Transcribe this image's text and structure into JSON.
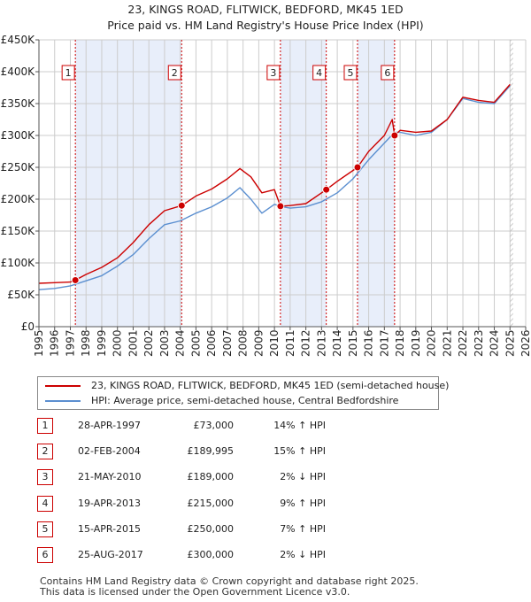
{
  "title_line1": "23, KINGS ROAD, FLITWICK, BEDFORD, MK45 1ED",
  "title_line2": "Price paid vs. HM Land Registry's House Price Index (HPI)",
  "colors": {
    "property": "#cc0000",
    "hpi": "#5b8fd0",
    "shade": "#e8eefa",
    "hatch": "#bbbbbb"
  },
  "chart_data": {
    "type": "line",
    "xlim": [
      1995,
      2026
    ],
    "ylim": [
      0,
      450000
    ],
    "x_ticks": [
      1995,
      1996,
      1997,
      1998,
      1999,
      2000,
      2001,
      2002,
      2003,
      2004,
      2005,
      2006,
      2007,
      2008,
      2009,
      2010,
      2011,
      2012,
      2013,
      2014,
      2015,
      2016,
      2017,
      2018,
      2019,
      2020,
      2021,
      2022,
      2023,
      2024,
      2025,
      2026
    ],
    "y_ticks": [
      {
        "value": 0,
        "label": "£0"
      },
      {
        "value": 50000,
        "label": "£50K"
      },
      {
        "value": 100000,
        "label": "£100K"
      },
      {
        "value": 150000,
        "label": "£150K"
      },
      {
        "value": 200000,
        "label": "£200K"
      },
      {
        "value": 250000,
        "label": "£250K"
      },
      {
        "value": 300000,
        "label": "£300K"
      },
      {
        "value": 350000,
        "label": "£350K"
      },
      {
        "value": 400000,
        "label": "£400K"
      },
      {
        "value": 450000,
        "label": "£450K"
      }
    ],
    "series": [
      {
        "name": "23, KINGS ROAD, FLITWICK, BEDFORD, MK45 1ED (semi-detached house)",
        "color": "#cc0000",
        "points": [
          [
            1995,
            68000
          ],
          [
            1996,
            69000
          ],
          [
            1997.0,
            70000
          ],
          [
            1997.32,
            73000
          ],
          [
            1998,
            82000
          ],
          [
            1999,
            93000
          ],
          [
            2000,
            108000
          ],
          [
            2001,
            132000
          ],
          [
            2002,
            160000
          ],
          [
            2003,
            182000
          ],
          [
            2004.09,
            189995
          ],
          [
            2005,
            205000
          ],
          [
            2006,
            216000
          ],
          [
            2007,
            232000
          ],
          [
            2007.8,
            248000
          ],
          [
            2008.5,
            235000
          ],
          [
            2009.2,
            210000
          ],
          [
            2010,
            215000
          ],
          [
            2010.38,
            189000
          ],
          [
            2011,
            190000
          ],
          [
            2012,
            193000
          ],
          [
            2013.3,
            215000
          ],
          [
            2014,
            228000
          ],
          [
            2015.29,
            250000
          ],
          [
            2016,
            275000
          ],
          [
            2017,
            300000
          ],
          [
            2017.5,
            325000
          ],
          [
            2017.65,
            300000
          ],
          [
            2018,
            308000
          ],
          [
            2019,
            305000
          ],
          [
            2020,
            307000
          ],
          [
            2021,
            325000
          ],
          [
            2022,
            360000
          ],
          [
            2023,
            355000
          ],
          [
            2024,
            352000
          ],
          [
            2025,
            380000
          ]
        ]
      },
      {
        "name": "HPI: Average price, semi-detached house, Central Bedfordshire",
        "color": "#5b8fd0",
        "points": [
          [
            1995,
            58000
          ],
          [
            1996,
            60000
          ],
          [
            1997,
            64000
          ],
          [
            1998,
            72000
          ],
          [
            1999,
            80000
          ],
          [
            2000,
            95000
          ],
          [
            2001,
            113000
          ],
          [
            2002,
            138000
          ],
          [
            2003,
            160000
          ],
          [
            2004,
            166000
          ],
          [
            2005,
            178000
          ],
          [
            2006,
            188000
          ],
          [
            2007,
            202000
          ],
          [
            2007.8,
            218000
          ],
          [
            2008.5,
            200000
          ],
          [
            2009.2,
            178000
          ],
          [
            2010,
            192000
          ],
          [
            2010.5,
            188000
          ],
          [
            2011,
            186000
          ],
          [
            2012,
            188000
          ],
          [
            2013,
            196000
          ],
          [
            2014,
            210000
          ],
          [
            2015,
            232000
          ],
          [
            2016,
            262000
          ],
          [
            2017,
            288000
          ],
          [
            2017.65,
            305000
          ],
          [
            2018,
            305000
          ],
          [
            2019,
            300000
          ],
          [
            2020,
            305000
          ],
          [
            2021,
            325000
          ],
          [
            2022,
            358000
          ],
          [
            2023,
            352000
          ],
          [
            2024,
            350000
          ],
          [
            2025,
            378000
          ]
        ]
      }
    ],
    "ownership_periods": [
      [
        1997.32,
        2004.09
      ],
      [
        2010.38,
        2013.3
      ],
      [
        2015.29,
        2017.65
      ]
    ],
    "transactions": [
      {
        "num": "1",
        "date": "28-APR-1997",
        "price": "£73,000",
        "hpi": "14% ↑ HPI",
        "x": 1997.32,
        "value": 73000
      },
      {
        "num": "2",
        "date": "02-FEB-2004",
        "price": "£189,995",
        "hpi": "15% ↑ HPI",
        "x": 2004.09,
        "value": 189995
      },
      {
        "num": "3",
        "date": "21-MAY-2010",
        "price": "£189,000",
        "hpi": "2% ↓ HPI",
        "x": 2010.38,
        "value": 189000
      },
      {
        "num": "4",
        "date": "19-APR-2013",
        "price": "£215,000",
        "hpi": "9% ↑ HPI",
        "x": 2013.3,
        "value": 215000
      },
      {
        "num": "5",
        "date": "15-APR-2015",
        "price": "£250,000",
        "hpi": "7% ↑ HPI",
        "x": 2015.29,
        "value": 250000
      },
      {
        "num": "6",
        "date": "25-AUG-2017",
        "price": "£300,000",
        "hpi": "2% ↓ HPI",
        "x": 2017.65,
        "value": 300000
      }
    ],
    "projection_from": 2025.0
  },
  "footer": {
    "line1": "Contains HM Land Registry data © Crown copyright and database right 2025.",
    "line2": "This data is licensed under the Open Government Licence v3.0."
  }
}
